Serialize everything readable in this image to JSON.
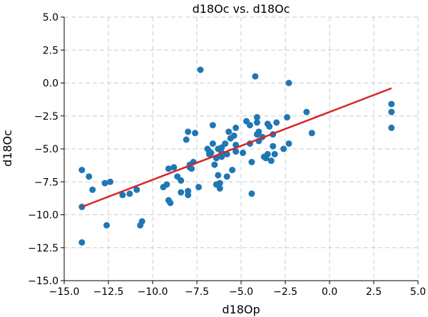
{
  "chart_data": {
    "type": "scatter",
    "title": "d18Oc vs. d18Oc",
    "xlabel": "d18Op",
    "ylabel": "d18Oc",
    "xlim": [
      -15.0,
      5.0
    ],
    "ylim": [
      -15.0,
      5.0
    ],
    "xticks": [
      -15.0,
      -12.5,
      -10.0,
      -7.5,
      -5.0,
      -2.5,
      0.0,
      2.5,
      5.0
    ],
    "yticks": [
      -15.0,
      -12.5,
      -10.0,
      -7.5,
      -5.0,
      -2.5,
      0.0,
      2.5,
      5.0
    ],
    "xtick_labels": [
      "−15.0",
      "−12.5",
      "−10.0",
      "−7.5",
      "−5.0",
      "−2.5",
      "0.0",
      "2.5",
      "5.0"
    ],
    "ytick_labels": [
      "−15.0",
      "−12.5",
      "−10.0",
      "−7.5",
      "−5.0",
      "−2.5",
      "0.0",
      "2.5",
      "5.0"
    ],
    "grid": true,
    "point_color": "#1f77b4",
    "line_color": "#d62728",
    "points": [
      [
        -14.0,
        -9.4
      ],
      [
        -14.0,
        -12.1
      ],
      [
        -14.0,
        -6.6
      ],
      [
        -13.6,
        -7.1
      ],
      [
        -13.4,
        -8.1
      ],
      [
        -12.7,
        -7.6
      ],
      [
        -12.6,
        -10.8
      ],
      [
        -12.4,
        -7.5
      ],
      [
        -11.7,
        -8.5
      ],
      [
        -11.3,
        -8.4
      ],
      [
        -10.9,
        -8.1
      ],
      [
        -10.7,
        -10.8
      ],
      [
        -10.6,
        -10.5
      ],
      [
        -9.4,
        -7.9
      ],
      [
        -9.2,
        -7.7
      ],
      [
        -9.1,
        -8.9
      ],
      [
        -9.1,
        -6.5
      ],
      [
        -9.0,
        -9.1
      ],
      [
        -8.8,
        -6.4
      ],
      [
        -8.6,
        -7.1
      ],
      [
        -8.4,
        -8.3
      ],
      [
        -8.4,
        -7.4
      ],
      [
        -8.1,
        -4.3
      ],
      [
        -8.0,
        -8.2
      ],
      [
        -8.0,
        -8.5
      ],
      [
        -8.0,
        -3.7
      ],
      [
        -7.9,
        -6.2
      ],
      [
        -7.9,
        -6.4
      ],
      [
        -7.8,
        -6.5
      ],
      [
        -7.7,
        -6.0
      ],
      [
        -7.6,
        -3.8
      ],
      [
        -7.4,
        -7.9
      ],
      [
        -7.3,
        1.0
      ],
      [
        -6.9,
        -5.0
      ],
      [
        -6.8,
        -5.4
      ],
      [
        -6.8,
        -5.2
      ],
      [
        -6.7,
        -5.3
      ],
      [
        -6.6,
        -4.6
      ],
      [
        -6.6,
        -3.2
      ],
      [
        -6.5,
        -6.2
      ],
      [
        -6.4,
        -7.7
      ],
      [
        -6.4,
        -5.7
      ],
      [
        -6.3,
        -7.0
      ],
      [
        -6.3,
        -5.0
      ],
      [
        -6.2,
        -7.6
      ],
      [
        -6.2,
        -8.0
      ],
      [
        -6.1,
        -4.9
      ],
      [
        -6.1,
        -5.3
      ],
      [
        -6.1,
        -5.6
      ],
      [
        -5.9,
        -4.6
      ],
      [
        -5.8,
        -7.1
      ],
      [
        -5.8,
        -5.4
      ],
      [
        -5.7,
        -3.7
      ],
      [
        -5.6,
        -4.2
      ],
      [
        -5.5,
        -6.6
      ],
      [
        -5.4,
        -4.0
      ],
      [
        -5.3,
        -3.4
      ],
      [
        -5.3,
        -5.2
      ],
      [
        -5.3,
        -4.7
      ],
      [
        -4.9,
        -5.3
      ],
      [
        -4.7,
        -2.9
      ],
      [
        -4.5,
        -4.6
      ],
      [
        -4.5,
        -3.2
      ],
      [
        -4.4,
        -6.0
      ],
      [
        -4.4,
        -8.4
      ],
      [
        -4.2,
        0.5
      ],
      [
        -4.1,
        -2.6
      ],
      [
        -4.1,
        -3.0
      ],
      [
        -4.1,
        -3.9
      ],
      [
        -4.0,
        -4.4
      ],
      [
        -4.0,
        -3.7
      ],
      [
        -3.8,
        -4.1
      ],
      [
        -3.7,
        -5.6
      ],
      [
        -3.6,
        -5.7
      ],
      [
        -3.5,
        -5.4
      ],
      [
        -3.5,
        -3.1
      ],
      [
        -3.4,
        -3.3
      ],
      [
        -3.3,
        -5.9
      ],
      [
        -3.2,
        -3.9
      ],
      [
        -3.2,
        -4.8
      ],
      [
        -3.1,
        -5.4
      ],
      [
        -3.0,
        -3.0
      ],
      [
        -2.6,
        -5.0
      ],
      [
        -2.4,
        -2.6
      ],
      [
        -2.3,
        -4.6
      ],
      [
        -2.3,
        0.0
      ],
      [
        -1.3,
        -2.2
      ],
      [
        -1.0,
        -3.8
      ],
      [
        3.5,
        -1.6
      ],
      [
        3.5,
        -2.2
      ],
      [
        3.5,
        -3.4
      ]
    ],
    "fit_line": [
      [
        -14.0,
        -9.4
      ],
      [
        3.5,
        -0.4
      ]
    ]
  }
}
